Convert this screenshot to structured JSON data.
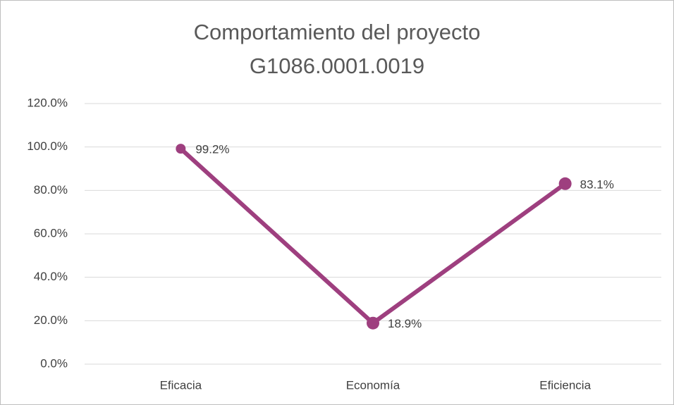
{
  "chart_data": {
    "type": "line",
    "title": [
      "Comportamiento del proyecto",
      "G1086.0001.0019"
    ],
    "categories": [
      "Eficacia",
      "Economía",
      "Eficiencia"
    ],
    "series": [
      {
        "color": "#9e3f7f",
        "values": [
          99.2,
          18.9,
          83.1
        ],
        "value_labels": [
          "99.2%",
          "18.9%",
          "83.1%"
        ]
      }
    ],
    "ylim": [
      0,
      120
    ],
    "yticks": [
      {
        "value": 0,
        "label": "0.0%"
      },
      {
        "value": 20,
        "label": "20.0%"
      },
      {
        "value": 40,
        "label": "40.0%"
      },
      {
        "value": 60,
        "label": "60.0%"
      },
      {
        "value": 80,
        "label": "80.0%"
      },
      {
        "value": 100,
        "label": "100.0%"
      },
      {
        "value": 120,
        "label": "120.0%"
      }
    ],
    "grid": true
  }
}
